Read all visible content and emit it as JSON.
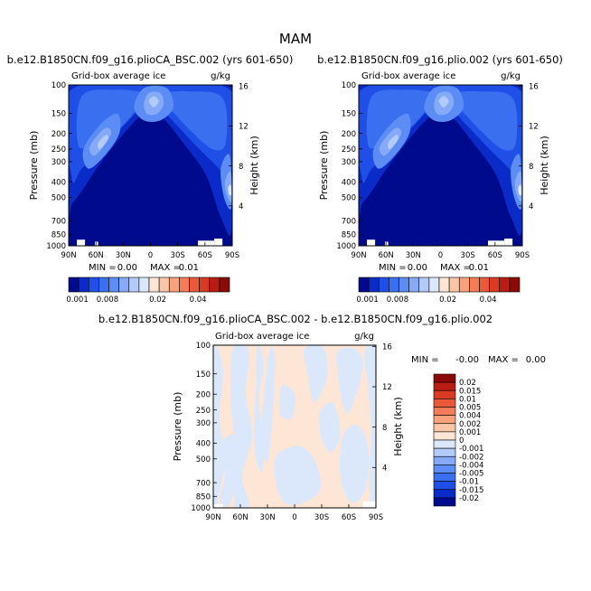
{
  "page": {
    "title": "MAM"
  },
  "chart_data": [
    {
      "type": "heatmap",
      "title": "b.e12.B1850CN.f09_g16.plioCA_BSC.002 (yrs 601-650)",
      "subtitle_left": "Grid-box average ice",
      "subtitle_right": "g/kg",
      "xlabel": "",
      "ylabel": "Pressure (mb)",
      "ylabel_right": "Height (km)",
      "x_ticks": [
        "90N",
        "60N",
        "30N",
        "0",
        "30S",
        "60S",
        "90S"
      ],
      "y_ticks": [
        "100",
        "150",
        "200",
        "250",
        "300",
        "400",
        "500",
        "700",
        "850",
        "1000"
      ],
      "right_ticks": [
        "16",
        "12",
        "8",
        "4"
      ],
      "y_scale": "log",
      "ylim": [
        1000,
        100
      ],
      "xlim": [
        "90N",
        "90S"
      ],
      "min_label": "MIN =",
      "min_value": "0.00",
      "max_label": "MAX =",
      "max_value": "0.01",
      "colorbar": {
        "orientation": "horizontal",
        "labels": [
          "0.001",
          "0.008",
          "0.02",
          "0.04"
        ],
        "colors": [
          "#000a8c",
          "#0a2bc8",
          "#1f4fe6",
          "#3a6ff0",
          "#5b8df5",
          "#86aaf7",
          "#b3cbf9",
          "#dbe8fb",
          "#fde6d6",
          "#fbc6a8",
          "#f8a27c",
          "#f47c56",
          "#ea5a38",
          "#d83a22",
          "#b81c12",
          "#8a0a05"
        ]
      }
    },
    {
      "type": "heatmap",
      "title": "b.e12.B1850CN.f09_g16.plio.002 (yrs 601-650)",
      "subtitle_left": "Grid-box average ice",
      "subtitle_right": "g/kg",
      "xlabel": "",
      "ylabel": "Pressure (mb)",
      "ylabel_right": "Height (km)",
      "x_ticks": [
        "90N",
        "60N",
        "30N",
        "0",
        "30S",
        "60S",
        "90S"
      ],
      "y_ticks": [
        "100",
        "150",
        "200",
        "250",
        "300",
        "400",
        "500",
        "700",
        "850",
        "1000"
      ],
      "right_ticks": [
        "16",
        "12",
        "8",
        "4"
      ],
      "y_scale": "log",
      "ylim": [
        1000,
        100
      ],
      "xlim": [
        "90N",
        "90S"
      ],
      "min_label": "MIN =",
      "min_value": "0.00",
      "max_label": "MAX =",
      "max_value": "0.01",
      "colorbar": {
        "orientation": "horizontal",
        "labels": [
          "0.001",
          "0.008",
          "0.02",
          "0.04"
        ],
        "colors": [
          "#000a8c",
          "#0a2bc8",
          "#1f4fe6",
          "#3a6ff0",
          "#5b8df5",
          "#86aaf7",
          "#b3cbf9",
          "#dbe8fb",
          "#fde6d6",
          "#fbc6a8",
          "#f8a27c",
          "#f47c56",
          "#ea5a38",
          "#d83a22",
          "#b81c12",
          "#8a0a05"
        ]
      }
    },
    {
      "type": "heatmap",
      "title": "b.e12.B1850CN.f09_g16.plioCA_BSC.002 - b.e12.B1850CN.f09_g16.plio.002",
      "subtitle_left": "Grid-box average ice",
      "subtitle_right": "g/kg",
      "xlabel": "",
      "ylabel": "Pressure (mb)",
      "ylabel_right": "Height (km)",
      "x_ticks": [
        "90N",
        "60N",
        "30N",
        "0",
        "30S",
        "60S",
        "90S"
      ],
      "y_ticks": [
        "100",
        "150",
        "200",
        "250",
        "300",
        "400",
        "500",
        "700",
        "850",
        "1000"
      ],
      "right_ticks": [
        "16",
        "12",
        "8",
        "4"
      ],
      "y_scale": "log",
      "ylim": [
        1000,
        100
      ],
      "xlim": [
        "90N",
        "90S"
      ],
      "min_label": "MIN =",
      "min_value": "-0.00",
      "max_label": "MAX =",
      "max_value": "0.00",
      "colorbar": {
        "orientation": "vertical",
        "labels": [
          "0.02",
          "0.015",
          "0.01",
          "0.005",
          "0.004",
          "0.002",
          "0.001",
          "0",
          "-0.001",
          "-0.002",
          "-0.004",
          "-0.005",
          "-0.01",
          "-0.015",
          "-0.02"
        ],
        "colors": [
          "#8a0a05",
          "#b81c12",
          "#d83a22",
          "#ea5a38",
          "#f47c56",
          "#f8a27c",
          "#fbc6a8",
          "#fde6d6",
          "#dbe8fb",
          "#b3cbf9",
          "#86aaf7",
          "#5b8df5",
          "#3a6ff0",
          "#1f4fe6",
          "#0a2bc8",
          "#000a8c"
        ]
      }
    }
  ]
}
